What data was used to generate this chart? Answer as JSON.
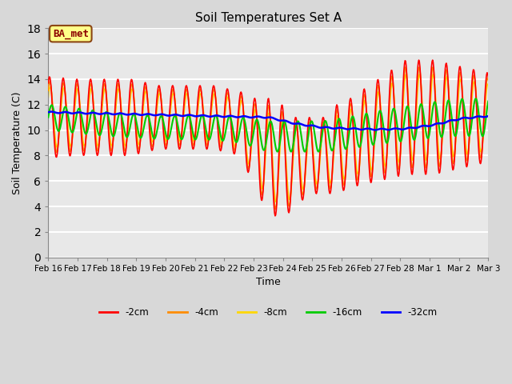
{
  "title": "Soil Temperatures Set A",
  "xlabel": "Time",
  "ylabel": "Soil Temperature (C)",
  "ylim": [
    0,
    18
  ],
  "yticks": [
    0,
    2,
    4,
    6,
    8,
    10,
    12,
    14,
    16,
    18
  ],
  "colors": {
    "-2cm": "#FF0000",
    "-4cm": "#FF8C00",
    "-8cm": "#FFD700",
    "-16cm": "#00CC00",
    "-32cm": "#0000FF"
  },
  "legend_labels": [
    "-2cm",
    "-4cm",
    "-8cm",
    "-16cm",
    "-32cm"
  ],
  "annotation_text": "BA_met",
  "annotation_bbox": {
    "facecolor": "#FFFF88",
    "edgecolor": "#8B4513",
    "boxstyle": "round,pad=0.3"
  },
  "background_color": "#D8D8D8",
  "axes_background": "#D8D8D8",
  "plot_bg_color": "#E8E8E8",
  "grid_color": "#FFFFFF",
  "x_labels": [
    "Feb 16",
    "Feb 17",
    "Feb 18",
    "Feb 19",
    "Feb 20",
    "Feb 21",
    "Feb 22",
    "Feb 23",
    "Feb 24",
    "Feb 25",
    "Feb 26",
    "Feb 27",
    "Feb 28",
    "Mar 1",
    "Mar 2",
    "Mar 3"
  ],
  "num_points": 800,
  "total_days": 16.0
}
